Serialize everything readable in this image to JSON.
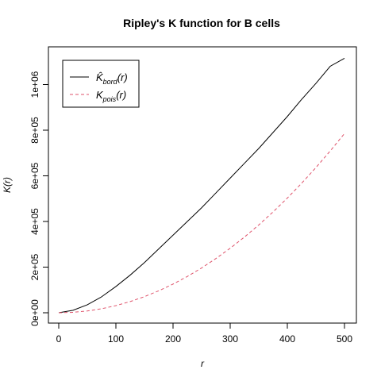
{
  "chart_data": {
    "type": "line",
    "title": "Ripley's K function for B cells",
    "xlabel": "r",
    "ylabel": "K(r)",
    "xlim": [
      0,
      500
    ],
    "ylim": [
      0,
      1120000
    ],
    "x_ticks": [
      0,
      100,
      200,
      300,
      400,
      500
    ],
    "y_ticks": [
      0,
      200000,
      400000,
      600000,
      800000,
      1000000
    ],
    "y_tick_labels": [
      "0e+00",
      "2e+05",
      "4e+05",
      "6e+05",
      "8e+05",
      "1e+06"
    ],
    "grid": false,
    "legend_position": "top-left",
    "series": [
      {
        "name": "K̂bord(r)",
        "legend_main": "K̂",
        "legend_sub": "bord",
        "legend_tail": "(r)",
        "color": "#000000",
        "dash": "solid",
        "x": [
          0,
          25,
          50,
          75,
          100,
          125,
          150,
          175,
          200,
          225,
          250,
          275,
          300,
          325,
          350,
          375,
          400,
          425,
          450,
          475,
          500
        ],
        "y": [
          0,
          11000,
          35000,
          70000,
          115000,
          165000,
          220000,
          280000,
          340000,
          400000,
          460000,
          525000,
          590000,
          655000,
          720000,
          790000,
          860000,
          935000,
          1005000,
          1080000,
          1115000
        ]
      },
      {
        "name": "Kpois(r)",
        "legend_main": "K",
        "legend_sub": "pois",
        "legend_tail": "(r)",
        "color": "#df536b",
        "dash": "dashed",
        "x": [
          0,
          25,
          50,
          75,
          100,
          125,
          150,
          175,
          200,
          225,
          250,
          275,
          300,
          325,
          350,
          375,
          400,
          425,
          450,
          475,
          500
        ],
        "y": [
          0,
          1963,
          7854,
          17671,
          31416,
          49087,
          70686,
          96211,
          125664,
          159043,
          196350,
          237583,
          282743,
          331831,
          384845,
          441786,
          502655,
          567450,
          636173,
          708822,
          785398
        ]
      }
    ]
  }
}
